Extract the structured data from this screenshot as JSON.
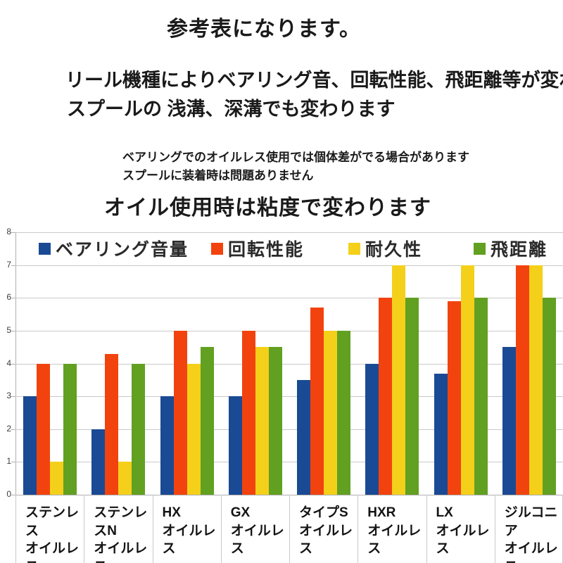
{
  "header": {
    "title": "参考表になります。",
    "note1": "リール機種によりベアリング音、回転性能、飛距離等が変わります。",
    "note2": "スプールの 浅溝、深溝でも変わります",
    "note3": "ベアリングでのオイルレス使用では個体差がでる場合があります",
    "note4": "スプールに装着時は問題ありません",
    "note5": "オイル使用時は粘度で変わります"
  },
  "chart_data": {
    "type": "bar",
    "title": "",
    "xlabel": "",
    "ylabel": "",
    "ylim": [
      0,
      8
    ],
    "ytick_step": 1,
    "grid": true,
    "legend_position": "top",
    "categories": [
      {
        "line1": "ステンレス",
        "line2": "オイルレス"
      },
      {
        "line1": "ステンレスN",
        "line2": "オイルレス"
      },
      {
        "line1": "HX",
        "line2": "オイルレス"
      },
      {
        "line1": "GX",
        "line2": "オイルレス"
      },
      {
        "line1": "タイプS",
        "line2": "オイルレス"
      },
      {
        "line1": "HXR",
        "line2": "オイルレス"
      },
      {
        "line1": "LX",
        "line2": "オイルレス"
      },
      {
        "line1": "ジルコニア",
        "line2": "オイルレス"
      }
    ],
    "series": [
      {
        "name": "ベアリング音量",
        "color": "#1b4a94",
        "values": [
          3,
          2,
          3,
          3,
          3.5,
          4,
          3.7,
          4.5
        ]
      },
      {
        "name": "回転性能",
        "color": "#f2430f",
        "values": [
          4,
          4.3,
          5,
          5,
          5.7,
          6,
          5.9,
          7
        ]
      },
      {
        "name": "耐久性",
        "color": "#f4d01a",
        "values": [
          1,
          1,
          4,
          4.5,
          5,
          7,
          7,
          7
        ]
      },
      {
        "name": "飛距離",
        "color": "#61a021",
        "values": [
          4,
          4,
          4.5,
          4.5,
          5,
          6,
          6,
          6
        ]
      }
    ]
  }
}
